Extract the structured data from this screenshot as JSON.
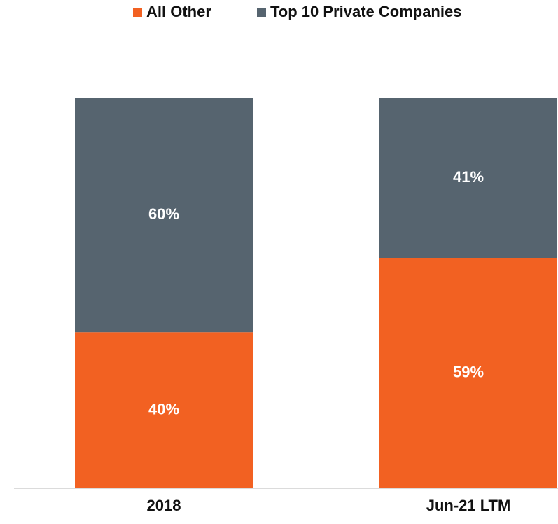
{
  "chart_data": {
    "type": "stacked_bar",
    "categories": [
      "2018",
      "Jun-21 LTM"
    ],
    "series": [
      {
        "name": "All Other",
        "color": "#f26122",
        "values": [
          40,
          59
        ],
        "value_labels": [
          "40%",
          "59%"
        ]
      },
      {
        "name": "Top 10 Private Companies",
        "color": "#56646f",
        "values": [
          60,
          41
        ],
        "value_labels": [
          "60%",
          "41%"
        ]
      }
    ],
    "ylim": [
      0,
      100
    ],
    "legend": "top"
  }
}
